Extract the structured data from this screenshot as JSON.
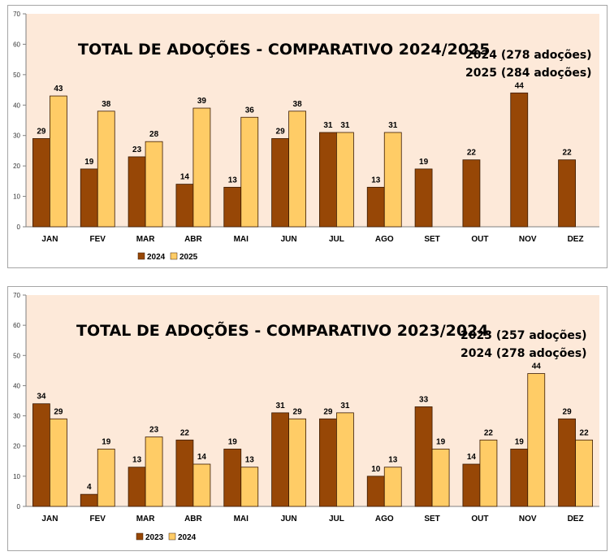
{
  "chart_data": [
    {
      "type": "bar",
      "title": "TOTAL DE ADOÇÕES - COMPARATIVO 2024/2025",
      "totals": [
        "2024 (278 adoções)",
        "2025 (284 adoções)"
      ],
      "categories": [
        "JAN",
        "FEV",
        "MAR",
        "ABR",
        "MAI",
        "JUN",
        "JUL",
        "AGO",
        "SET",
        "OUT",
        "NOV",
        "DEZ"
      ],
      "series": [
        {
          "name": "2024",
          "color": "#974706",
          "values": [
            29,
            19,
            23,
            14,
            13,
            29,
            31,
            13,
            19,
            22,
            44,
            22
          ]
        },
        {
          "name": "2025",
          "color": "#ffcc66",
          "values": [
            43,
            38,
            28,
            39,
            36,
            38,
            31,
            31,
            null,
            null,
            null,
            null
          ]
        }
      ],
      "ylim": [
        0,
        70
      ],
      "yticks": [
        0,
        10,
        20,
        30,
        40,
        50,
        60,
        70
      ],
      "plot_background": "#fde9d9",
      "legend_position": "bottom-left",
      "grid": false
    },
    {
      "type": "bar",
      "title": "TOTAL DE ADOÇÕES - COMPARATIVO 2023/2024",
      "totals": [
        "2023 (257 adoções)",
        "2024 (278 adoções)"
      ],
      "categories": [
        "JAN",
        "FEV",
        "MAR",
        "ABR",
        "MAI",
        "JUN",
        "JUL",
        "AGO",
        "SET",
        "OUT",
        "NOV",
        "DEZ"
      ],
      "series": [
        {
          "name": "2023",
          "color": "#974706",
          "values": [
            34,
            4,
            13,
            22,
            19,
            31,
            29,
            10,
            33,
            14,
            19,
            29
          ]
        },
        {
          "name": "2024",
          "color": "#ffcc66",
          "values": [
            29,
            19,
            23,
            14,
            13,
            29,
            31,
            13,
            19,
            22,
            44,
            22
          ]
        }
      ],
      "ylim": [
        0,
        70
      ],
      "yticks": [
        0,
        10,
        20,
        30,
        40,
        50,
        60,
        70
      ],
      "plot_background": "#fde9d9",
      "legend_position": "bottom-left",
      "grid": false
    }
  ]
}
